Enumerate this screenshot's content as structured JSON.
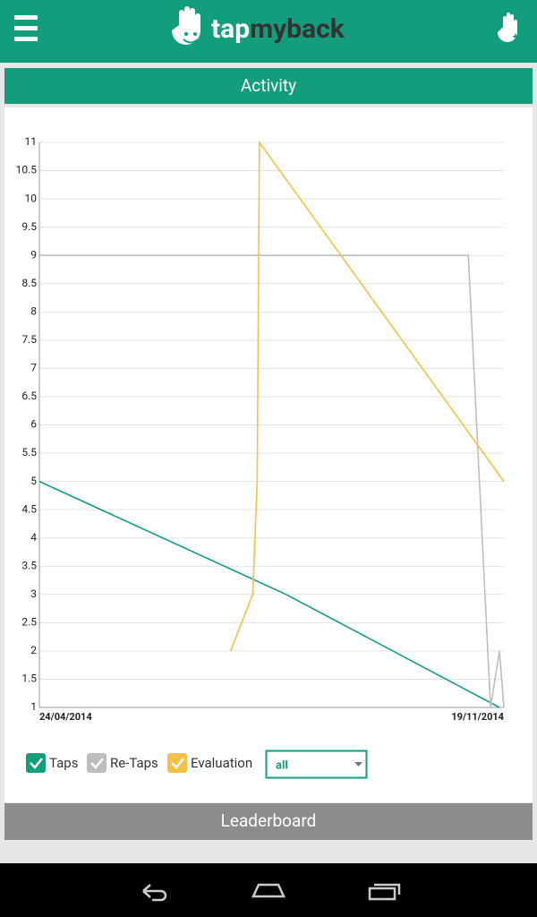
{
  "header": {
    "logo_part1": "tap",
    "logo_part2": "myback"
  },
  "activity_title": "Activity",
  "chart_data": {
    "type": "line",
    "xlim": [
      "24/04/2014",
      "19/11/2014"
    ],
    "xticks": [
      "24/04/2014",
      "19/11/2014"
    ],
    "ylim": [
      1,
      11
    ],
    "yticks": [
      1,
      1.5,
      2,
      2.5,
      3,
      3.5,
      4,
      4.5,
      5,
      5.5,
      6,
      6.5,
      7,
      7.5,
      8,
      8.5,
      9,
      9.5,
      10,
      10.5,
      11
    ],
    "grid": true,
    "series": [
      {
        "name": "Taps",
        "color": "#129e7c",
        "x": [
          "24/04/2014",
          "13/08/2014",
          "17/11/2014"
        ],
        "values": [
          5,
          3,
          1
        ]
      },
      {
        "name": "Re-Taps",
        "color": "#bdbdbd",
        "x": [
          "24/04/2014",
          "03/11/2014",
          "13/11/2014",
          "17/11/2014",
          "19/11/2014"
        ],
        "values": [
          9,
          9,
          1,
          2,
          1
        ]
      },
      {
        "name": "Evaluation",
        "color": "#f5c04a",
        "x": [
          "19/07/2014",
          "29/07/2014",
          "31/07/2014",
          "01/08/2014",
          "19/11/2014"
        ],
        "values": [
          2,
          3,
          5,
          11,
          5
        ]
      }
    ]
  },
  "filter": "all",
  "leaderboard_title": "Leaderboard"
}
